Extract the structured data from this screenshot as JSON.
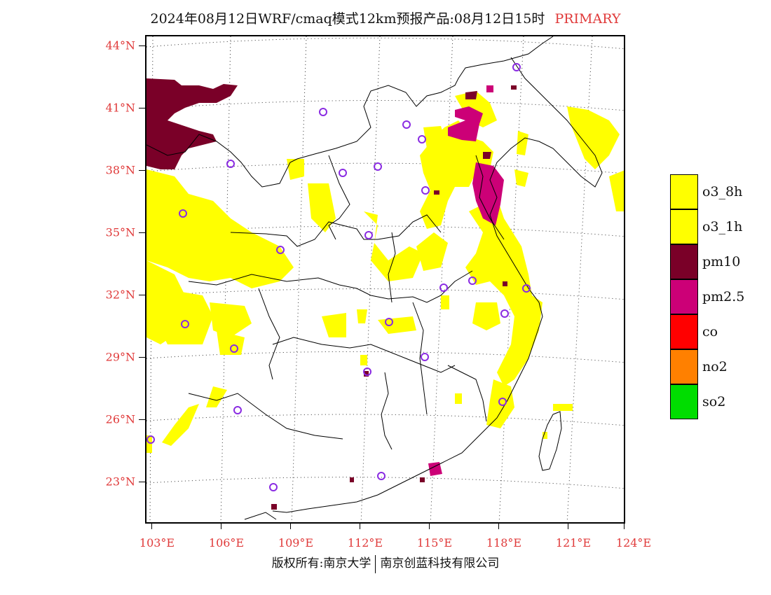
{
  "title": {
    "text": "2024年08月12日WRF/cmaq模式12km预报产品:08月12日15时",
    "mode": "PRIMARY"
  },
  "axes": {
    "lat_labels": [
      "44°N",
      "41°N",
      "38°N",
      "35°N",
      "32°N",
      "29°N",
      "26°N",
      "23°N"
    ],
    "lon_labels": [
      "103°E",
      "106°E",
      "109°E",
      "112°E",
      "115°E",
      "118°E",
      "121°E",
      "124°E"
    ]
  },
  "legend": [
    {
      "label": "o3_8h",
      "color": "#ffff00"
    },
    {
      "label": "o3_1h",
      "color": "#ffff00"
    },
    {
      "label": "pm10",
      "color": "#7a0028"
    },
    {
      "label": "pm2.5",
      "color": "#cc0077"
    },
    {
      "label": "co",
      "color": "#ff0000"
    },
    {
      "label": "no2",
      "color": "#ff8000"
    },
    {
      "label": "so2",
      "color": "#00dd00"
    }
  ],
  "colors": {
    "o3": "#ffff00",
    "pm10": "#7a0028",
    "pm25": "#cc0077",
    "station": "#8a2be2",
    "boundary": "#000000",
    "grid": "#333333"
  },
  "footer": {
    "left": "版权所有:南京大学",
    "right": "南京创蓝科技有限公司"
  }
}
